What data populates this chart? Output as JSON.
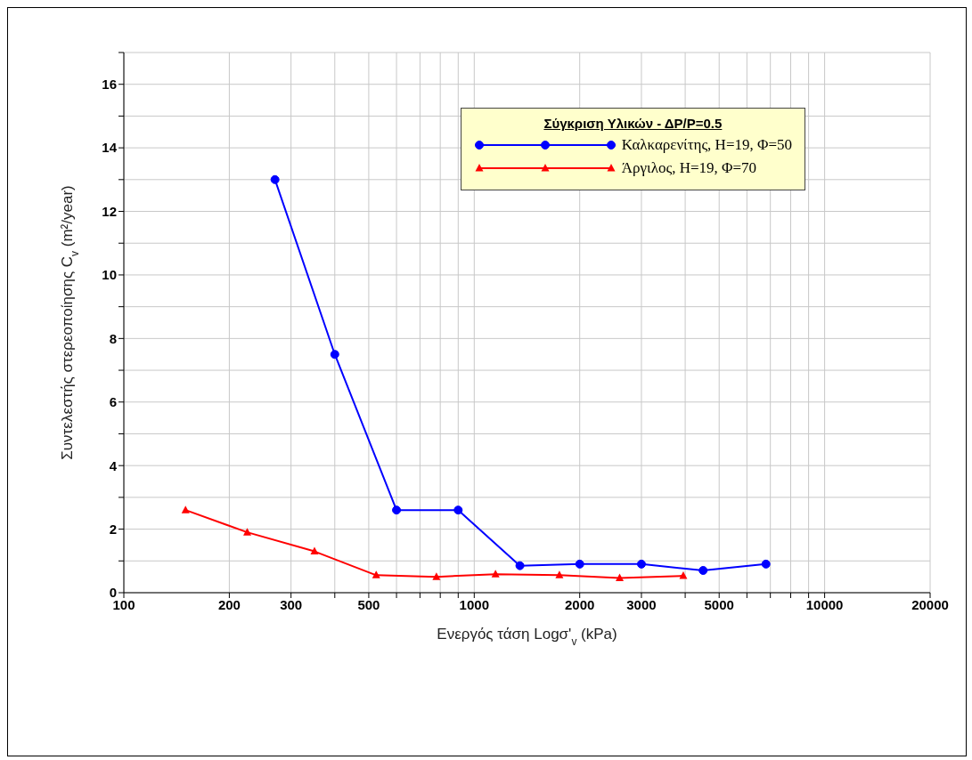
{
  "chart_data": {
    "type": "line",
    "xlabel": "Ενεργός τάση Logσ'$_{v}$ (kPa)",
    "ylabel": "Συντελεστής στερεοποίησης C$_{v}$ (m²/year)",
    "legend_title": "Σύγκριση Υλικών - ΔP/P=0.5",
    "log": "x",
    "xlim": [
      100,
      20000
    ],
    "ylim": [
      0,
      17
    ],
    "xticks": [
      100,
      200,
      300,
      {
        "value": 400,
        "label": null
      },
      500,
      {
        "value": 600,
        "label": null
      },
      {
        "value": 700,
        "label": null
      },
      {
        "value": 800,
        "label": null
      },
      {
        "value": 900,
        "label": null
      },
      1000,
      2000,
      3000,
      {
        "value": 4000,
        "label": null
      },
      5000,
      {
        "value": 6000,
        "label": null
      },
      {
        "value": 7000,
        "label": null
      },
      {
        "value": 8000,
        "label": null
      },
      {
        "value": 9000,
        "label": null
      },
      10000,
      20000
    ],
    "yticks": [
      0,
      {
        "value": 1,
        "label": null
      },
      2,
      {
        "value": 3,
        "label": null
      },
      4,
      {
        "value": 5,
        "label": null
      },
      6,
      {
        "value": 7,
        "label": null
      },
      8,
      {
        "value": 9,
        "label": null
      },
      10,
      {
        "value": 11,
        "label": null
      },
      12,
      {
        "value": 13,
        "label": null
      },
      14,
      {
        "value": 15,
        "label": null
      },
      16,
      {
        "value": 17,
        "label": null
      }
    ],
    "grid": true,
    "legend": "top right",
    "line_style": "solid",
    "series": [
      {
        "name": "Καλκαρενίτης, Η=19, Φ=50",
        "color": "#0000ff",
        "marker": "circle",
        "x": [
          270,
          400,
          600,
          900,
          1350,
          2000,
          3000,
          4500,
          6800
        ],
        "values": [
          13,
          7.5,
          2.6,
          2.6,
          0.85,
          0.9,
          0.9,
          0.7,
          0.9
        ]
      },
      {
        "name": "Άργιλος, Η=19, Φ=70",
        "color": "#ff0000",
        "marker": "triangle",
        "x": [
          150,
          225,
          350,
          525,
          780,
          1150,
          1750,
          2600,
          3950
        ],
        "values": [
          2.6,
          1.9,
          1.3,
          0.55,
          0.5,
          0.58,
          0.55,
          0.46,
          0.53
        ]
      }
    ]
  }
}
